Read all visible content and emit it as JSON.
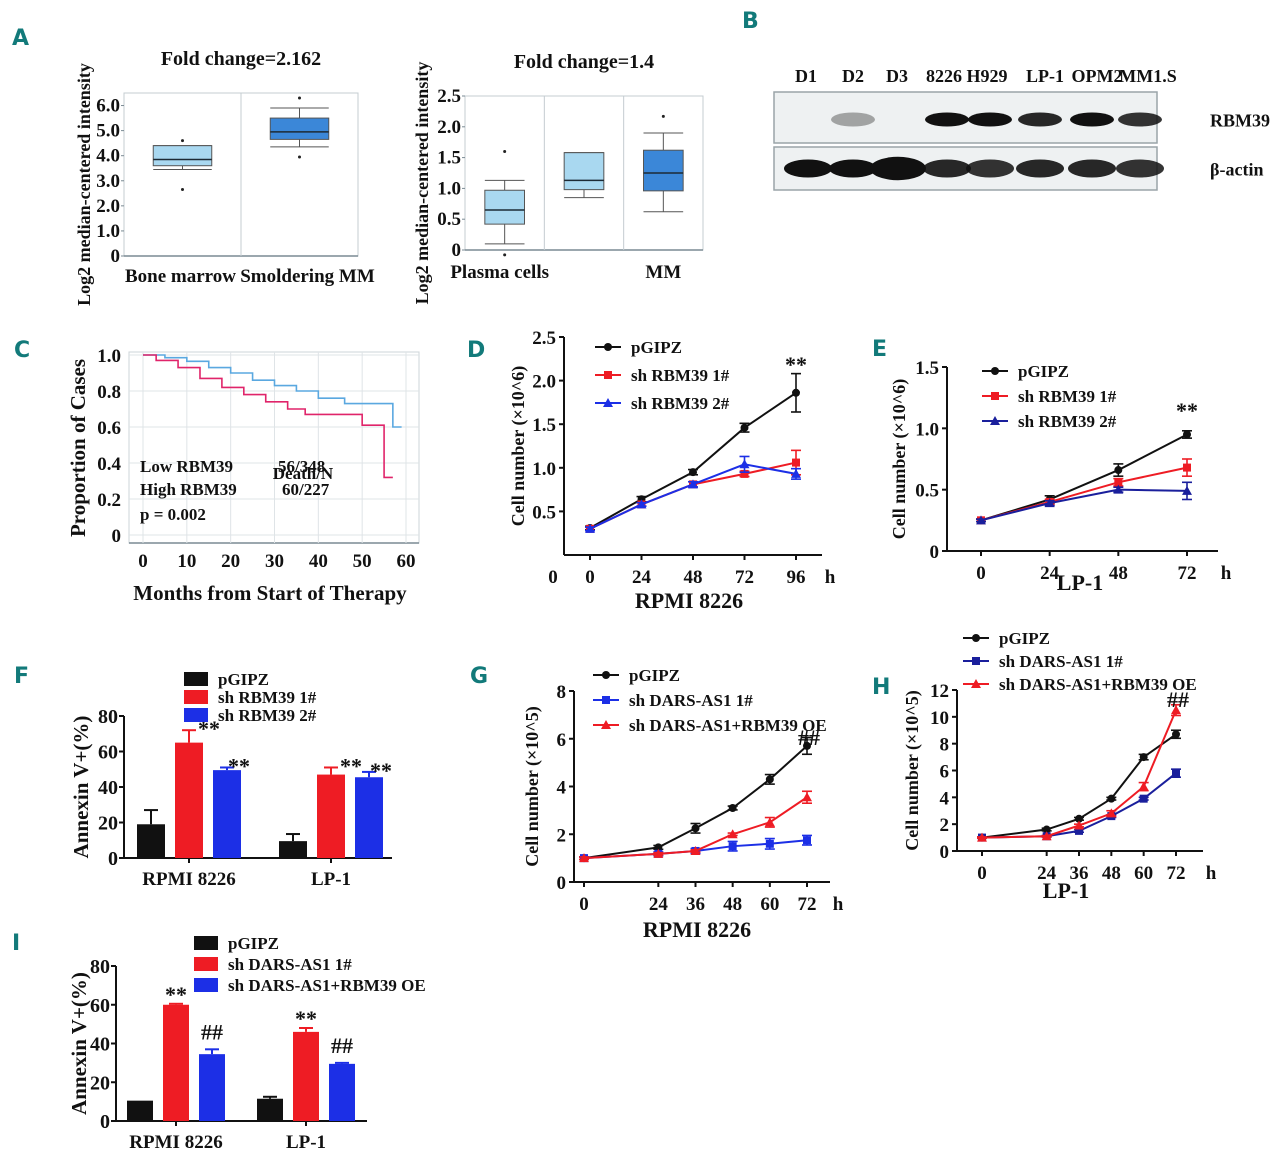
{
  "panel_letters": [
    "A",
    "B",
    "C",
    "D",
    "E",
    "F",
    "G",
    "H",
    "I"
  ],
  "colors": {
    "panel_letter": "#127a7a",
    "black": "#111111",
    "red": "#ee1c24",
    "blue": "#1c2fe6",
    "navy": "#1a1f9c",
    "light_blue_box": "#a9d8f0",
    "dark_blue_box": "#3b87d8",
    "km_low": "#5aa8e0",
    "km_high": "#e0246a",
    "km_text_low": "#5aa8e0",
    "km_text_high": "#e8132b"
  },
  "chart_data": [
    {
      "id": "A1",
      "type": "box",
      "title": "Fold change=2.162",
      "ylabel": "Log2 median-centered intensity",
      "categories": [
        "Bone marrow",
        "Smoldering MM"
      ],
      "yticks": [
        "0",
        "1.0",
        "2.0",
        "3.0",
        "4.0",
        "5.0",
        "6.0"
      ],
      "ylim": [
        0,
        6.5
      ],
      "boxes": [
        {
          "name": "Bone marrow",
          "q1": 3.6,
          "median": 3.85,
          "q3": 4.4,
          "whisker_low": 3.45,
          "whisker_high": 4.4,
          "outliers": [
            4.6,
            2.65
          ]
        },
        {
          "name": "Smoldering MM",
          "q1": 4.65,
          "median": 4.95,
          "q3": 5.5,
          "whisker_low": 4.35,
          "whisker_high": 5.9,
          "outliers": [
            6.3,
            3.95
          ]
        }
      ]
    },
    {
      "id": "A2",
      "type": "box",
      "title": "Fold change=1.4",
      "ylabel": "Log2 median-centered intensity",
      "categories": [
        "Plasma cells",
        "",
        "MM"
      ],
      "yticks": [
        "0",
        "0.5",
        "1.0",
        "1.5",
        "2.0",
        "2.5"
      ],
      "ylim": [
        0,
        2.5
      ],
      "boxes": [
        {
          "name": "Plasma cells",
          "q1": 0.42,
          "median": 0.65,
          "q3": 0.97,
          "whisker_low": 0.1,
          "whisker_high": 1.13,
          "outliers": [
            1.6,
            -0.08
          ]
        },
        {
          "name": "",
          "q1": 0.98,
          "median": 1.13,
          "q3": 1.58,
          "whisker_low": 0.85,
          "whisker_high": 1.58,
          "outliers": []
        },
        {
          "name": "MM",
          "q1": 0.96,
          "median": 1.25,
          "q3": 1.62,
          "whisker_low": 0.62,
          "whisker_high": 1.9,
          "outliers": [
            2.17
          ]
        }
      ]
    },
    {
      "id": "B",
      "type": "western_blot",
      "lanes": [
        "D1",
        "D2",
        "D3",
        "8226",
        "H929",
        "LP-1",
        "OPM2",
        "MM1.S"
      ],
      "rows": [
        {
          "label": "RBM39",
          "intensity": [
            0,
            0.35,
            0,
            1,
            1,
            0.9,
            1,
            0.85
          ]
        },
        {
          "label": "β-actin",
          "intensity": [
            1,
            1,
            1.15,
            0.9,
            0.85,
            0.9,
            0.9,
            0.85
          ]
        }
      ]
    },
    {
      "id": "C",
      "type": "line",
      "subtype": "kaplan-meier",
      "xlabel": "Months from Start of Therapy",
      "ylabel": "Proportion of Cases",
      "xticks": [
        "0",
        "10",
        "20",
        "30",
        "40",
        "50",
        "60"
      ],
      "yticks": [
        "0",
        "0.2",
        "0.4",
        "0.6",
        "0.8",
        "1.0"
      ],
      "xlim": [
        0,
        62
      ],
      "ylim": [
        0,
        1.05
      ],
      "legend_header": "Death/N",
      "series": [
        {
          "name": "Low RBM39",
          "death_n": "56/348",
          "x": [
            0,
            5,
            10,
            15,
            20,
            25,
            30,
            35,
            38,
            40,
            46,
            52,
            57,
            59
          ],
          "y": [
            1.0,
            0.985,
            0.965,
            0.93,
            0.9,
            0.86,
            0.83,
            0.8,
            0.8,
            0.76,
            0.73,
            0.73,
            0.6,
            0.6
          ]
        },
        {
          "name": "High RBM39",
          "death_n": "60/227",
          "x": [
            0,
            3,
            8,
            13,
            18,
            23,
            28,
            33,
            37,
            45,
            50,
            55,
            57
          ],
          "y": [
            1.0,
            0.97,
            0.93,
            0.87,
            0.82,
            0.78,
            0.74,
            0.7,
            0.67,
            0.67,
            0.61,
            0.32,
            0.32
          ]
        }
      ],
      "annotation": "p = 0.002"
    },
    {
      "id": "D",
      "type": "line",
      "xlabel": "RPMI 8226",
      "ylabel": "Cell number (×10^6)",
      "x": [
        0,
        24,
        48,
        72,
        96
      ],
      "xticks": [
        "0",
        "24",
        "48",
        "72",
        "96"
      ],
      "x_unit": "h",
      "yticks": [
        "0.5",
        "1.0",
        "1.5",
        "2.0",
        "2.5"
      ],
      "y_zero_label": "0",
      "ylim": [
        0,
        2.5
      ],
      "series": [
        {
          "name": "pGIPZ",
          "marker": "circle",
          "values": [
            0.31,
            0.64,
            0.95,
            1.46,
            1.86
          ],
          "err": [
            0.02,
            0.03,
            0.03,
            0.05,
            0.22
          ]
        },
        {
          "name": "sh RBM39 1#",
          "marker": "square",
          "values": [
            0.3,
            0.58,
            0.81,
            0.93,
            1.06
          ],
          "err": [
            0.02,
            0.02,
            0.03,
            0.03,
            0.14
          ]
        },
        {
          "name": "sh RBM39 2#",
          "marker": "triangle",
          "values": [
            0.3,
            0.58,
            0.81,
            1.04,
            0.93
          ],
          "err": [
            0.02,
            0.02,
            0.03,
            0.09,
            0.06
          ]
        }
      ],
      "annotation": "**"
    },
    {
      "id": "E",
      "type": "line",
      "xlabel": "LP-1",
      "ylabel": "Cell number (×10^6)",
      "x": [
        0,
        24,
        48,
        72
      ],
      "xticks": [
        "0",
        "24",
        "48",
        "72"
      ],
      "x_unit": "h",
      "yticks": [
        "0",
        "0.5",
        "1.0",
        "1.5"
      ],
      "ylim": [
        0,
        1.5
      ],
      "series": [
        {
          "name": "pGIPZ",
          "marker": "circle",
          "values": [
            0.25,
            0.42,
            0.66,
            0.95
          ],
          "err": [
            0.01,
            0.03,
            0.05,
            0.03
          ]
        },
        {
          "name": "sh RBM39 1#",
          "marker": "square",
          "values": [
            0.25,
            0.4,
            0.56,
            0.68
          ],
          "err": [
            0.01,
            0.02,
            0.03,
            0.07
          ]
        },
        {
          "name": "sh RBM39 2#",
          "marker": "triangle",
          "values": [
            0.25,
            0.39,
            0.5,
            0.49
          ],
          "err": [
            0.01,
            0.02,
            0.02,
            0.07
          ]
        }
      ],
      "annotation": "**"
    },
    {
      "id": "F",
      "type": "bar",
      "ylabel": "Annexin V+(%)",
      "categories": [
        "RPMI 8226",
        "LP-1"
      ],
      "yticks": [
        "0",
        "20",
        "40",
        "60",
        "80"
      ],
      "ylim": [
        0,
        80
      ],
      "series": [
        {
          "name": "pGIPZ",
          "values": [
            19,
            9.5
          ],
          "err": [
            8,
            4
          ],
          "annot": [
            "",
            ""
          ]
        },
        {
          "name": "sh RBM39 1#",
          "values": [
            65,
            47
          ],
          "err": [
            7,
            4
          ],
          "annot": [
            "**",
            "**"
          ]
        },
        {
          "name": "sh RBM39 2#",
          "values": [
            49.5,
            45.5
          ],
          "err": [
            1.5,
            3
          ],
          "annot": [
            "**",
            "**"
          ]
        }
      ]
    },
    {
      "id": "G",
      "type": "line",
      "xlabel": "RPMI 8226",
      "ylabel": "Cell number (×10^5)",
      "x": [
        0,
        24,
        36,
        48,
        60,
        72
      ],
      "xticks": [
        "0",
        "24",
        "36",
        "48",
        "60",
        "72"
      ],
      "x_unit": "h",
      "yticks": [
        "0",
        "2",
        "4",
        "6",
        "8"
      ],
      "ylim": [
        0,
        8
      ],
      "series": [
        {
          "name": "pGIPZ",
          "marker": "circle",
          "values": [
            1.0,
            1.45,
            2.25,
            3.1,
            4.3,
            5.7
          ],
          "err": [
            0.05,
            0.08,
            0.2,
            0.08,
            0.2,
            0.35
          ]
        },
        {
          "name": "sh DARS-AS1 1#",
          "marker": "square",
          "values": [
            1.0,
            1.18,
            1.3,
            1.5,
            1.6,
            1.75
          ],
          "err": [
            0.05,
            0.08,
            0.1,
            0.2,
            0.22,
            0.2
          ]
        },
        {
          "name": "sh DARS-AS1+RBM39 OE",
          "marker": "triangle",
          "values": [
            1.0,
            1.18,
            1.3,
            2.0,
            2.5,
            3.55
          ],
          "err": [
            0.05,
            0.05,
            0.05,
            0.05,
            0.2,
            0.25
          ]
        }
      ],
      "annotation": "##"
    },
    {
      "id": "H",
      "type": "line",
      "xlabel": "LP-1",
      "ylabel": "Cell number (×10^5)",
      "x": [
        0,
        24,
        36,
        48,
        60,
        72
      ],
      "xticks": [
        "0",
        "24",
        "36",
        "48",
        "60",
        "72"
      ],
      "x_unit": "h",
      "yticks": [
        "0",
        "2",
        "4",
        "6",
        "8",
        "10",
        "12"
      ],
      "ylim": [
        0,
        12
      ],
      "series": [
        {
          "name": "pGIPZ",
          "marker": "circle",
          "values": [
            1.0,
            1.6,
            2.4,
            3.9,
            7.0,
            8.7
          ],
          "err": [
            0.05,
            0.1,
            0.1,
            0.1,
            0.2,
            0.3
          ]
        },
        {
          "name": "sh DARS-AS1 1#",
          "marker": "square",
          "values": [
            1.0,
            1.1,
            1.5,
            2.6,
            3.9,
            5.8
          ],
          "err": [
            0.05,
            0.05,
            0.1,
            0.1,
            0.1,
            0.3
          ]
        },
        {
          "name": "sh DARS-AS1+RBM39 OE",
          "marker": "triangle",
          "values": [
            1.0,
            1.1,
            1.9,
            2.8,
            4.8,
            10.5
          ],
          "err": [
            0.05,
            0.05,
            0.1,
            0.2,
            0.3,
            0.4
          ]
        }
      ],
      "annotation": "##"
    },
    {
      "id": "I",
      "type": "bar",
      "ylabel": "Annexin V+(%)",
      "categories": [
        "RPMI 8226",
        "LP-1"
      ],
      "yticks": [
        "0",
        "20",
        "40",
        "60",
        "80"
      ],
      "ylim": [
        0,
        80
      ],
      "series": [
        {
          "name": "pGIPZ",
          "values": [
            10.5,
            11.5
          ],
          "err": [
            0,
            1
          ],
          "annot": [
            "",
            ""
          ]
        },
        {
          "name": "sh DARS-AS1 1#",
          "values": [
            60,
            46
          ],
          "err": [
            0.5,
            2
          ],
          "annot": [
            "**",
            "**"
          ]
        },
        {
          "name": "sh DARS-AS1+RBM39 OE",
          "values": [
            34.5,
            29.5
          ],
          "err": [
            2.5,
            0.5
          ],
          "annot": [
            "##",
            "##"
          ]
        }
      ]
    }
  ]
}
